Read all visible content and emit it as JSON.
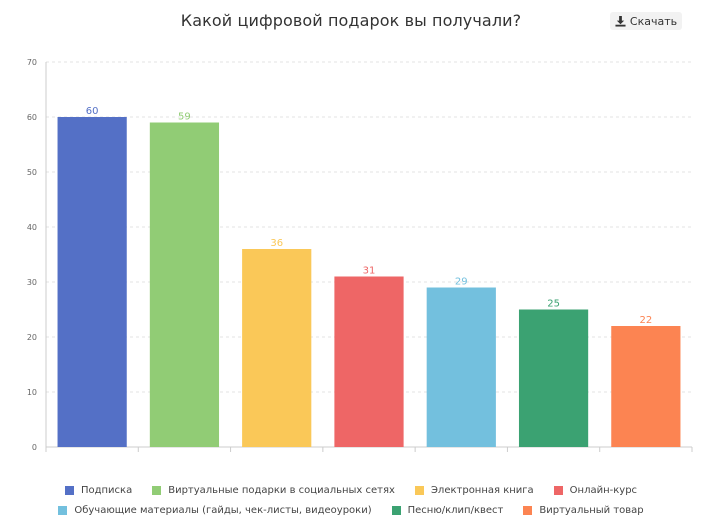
{
  "download_label": "Скачать",
  "chart_data": {
    "type": "bar",
    "title": "Какой цифровой подарок вы получали?",
    "categories": [
      "Подписка",
      "Виртуальные подарки в социальных сетях",
      "Электронная книга",
      "Онлайн-курс",
      "Обучающие материалы (гайды, чек-листы, видеоуроки)",
      "Песню/клип/квест",
      "Виртуальный товар"
    ],
    "values": [
      60,
      59,
      36,
      31,
      29,
      25,
      22
    ],
    "colors": [
      "#5470c6",
      "#91cc75",
      "#fac858",
      "#ee6666",
      "#73c0de",
      "#3ba272",
      "#fc8452"
    ],
    "ylim": [
      0,
      70
    ],
    "yticks": [
      0,
      10,
      20,
      30,
      40,
      50,
      60,
      70
    ],
    "grid": true,
    "legend_position": "bottom"
  }
}
